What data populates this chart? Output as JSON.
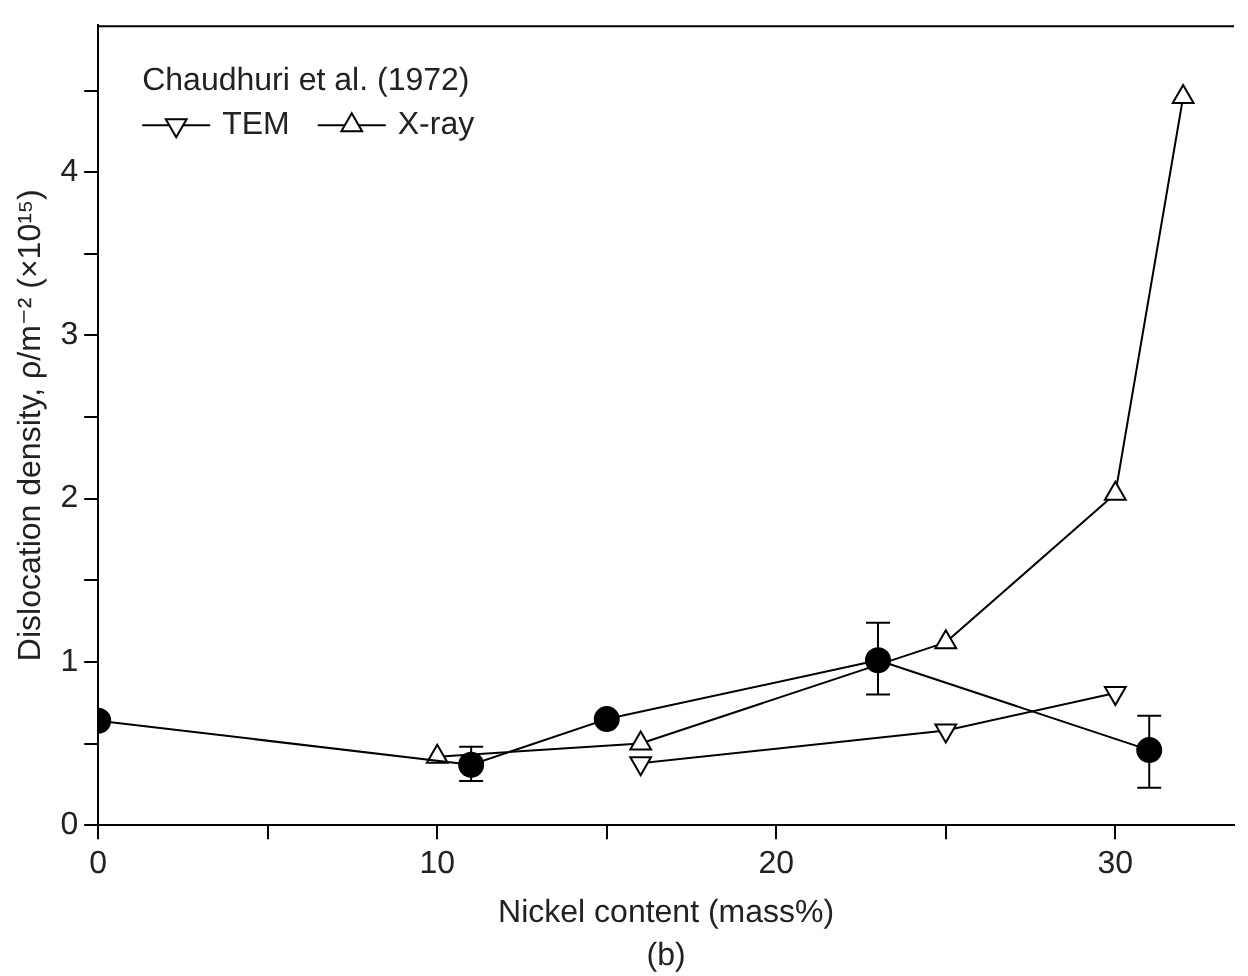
{
  "chart_data": {
    "type": "line",
    "xlabel": "Nickel content (mass%)",
    "ylabel": "Dislocation density, ρ/m⁻² (×10¹⁵)",
    "legend_title": "Chaudhuri et al. (1972)",
    "legend": "top left",
    "grid": false,
    "annotations": [
      "(b)"
    ],
    "xlim": [
      0,
      33.5
    ],
    "xticks": [
      0,
      {
        "value": 5,
        "label": null
      },
      10,
      {
        "value": 15,
        "label": null
      },
      20,
      {
        "value": 25,
        "label": null
      },
      30
    ],
    "ylim": [
      0,
      4.9
    ],
    "yticks": [
      0,
      {
        "value": 0.5,
        "label": null
      },
      1,
      {
        "value": 1.5,
        "label": null
      },
      2,
      {
        "value": 2.5,
        "label": null
      },
      3,
      {
        "value": 3.5,
        "label": null
      },
      4,
      {
        "value": 4.5,
        "label": null
      }
    ],
    "series": [
      {
        "color": "#000000",
        "marker": "circle",
        "x": [
          0,
          11,
          15,
          23,
          31
        ],
        "values": [
          0.64,
          0.37,
          0.65,
          1.01,
          0.46
        ],
        "errors": [
          null,
          [
            0.27,
            0.48
          ],
          null,
          [
            0.8,
            1.24
          ],
          [
            0.23,
            0.67
          ]
        ]
      },
      {
        "name": "TEM",
        "color": "#000000",
        "marker": "triangle-down",
        "x": [
          16,
          25,
          30
        ],
        "values": [
          0.38,
          0.58,
          0.81
        ]
      },
      {
        "name": "X-ray",
        "color": "#000000",
        "marker": "triangle",
        "x": [
          10,
          16,
          25,
          30,
          32
        ],
        "values": [
          0.42,
          0.5,
          1.12,
          2.03,
          4.46
        ]
      }
    ]
  }
}
